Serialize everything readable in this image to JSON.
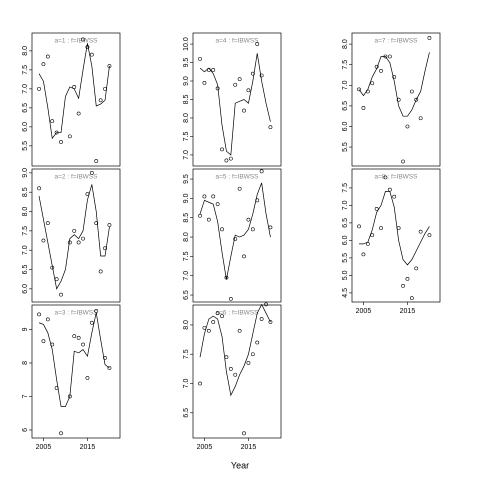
{
  "xlabel": "Year",
  "chart_data": [
    {
      "type": "scatter",
      "title": "a=1 : f=IBWSS",
      "x": [
        2004,
        2005,
        2006,
        2007,
        2008,
        2009,
        2010,
        2011,
        2012,
        2013,
        2014,
        2015,
        2016,
        2017,
        2018,
        2019,
        2020
      ],
      "values": [
        7.0,
        7.65,
        7.85,
        6.15,
        5.85,
        5.6,
        null,
        5.75,
        7.05,
        6.35,
        8.3,
        8.1,
        7.9,
        5.1,
        6.7,
        7.0,
        7.6
      ],
      "line_values": [
        7.4,
        7.2,
        6.5,
        5.7,
        5.85,
        5.85,
        6.8,
        7.05,
        7.0,
        6.75,
        7.5,
        8.2,
        7.6,
        6.55,
        6.6,
        6.7,
        7.6
      ],
      "xlim": [
        2002.4,
        2022.4
      ],
      "ylim": [
        4.97,
        8.47
      ],
      "yticks": [
        5.5,
        {
          "value": 6,
          "label": "6.0"
        },
        6.5,
        {
          "value": 7,
          "label": "7.0"
        },
        7.5,
        {
          "value": 8,
          "label": "8.0"
        }
      ]
    },
    {
      "type": "scatter",
      "title": "a=2 : f=IBWSS",
      "x": [
        2004,
        2005,
        2006,
        2007,
        2008,
        2009,
        2010,
        2011,
        2012,
        2013,
        2014,
        2015,
        2016,
        2017,
        2018,
        2019,
        2020
      ],
      "values": [
        8.6,
        7.25,
        7.7,
        6.55,
        6.25,
        5.85,
        null,
        7.2,
        7.5,
        7.2,
        7.3,
        8.45,
        9.0,
        7.7,
        6.45,
        7.05,
        7.65
      ],
      "line_values": [
        8.4,
        7.8,
        7.2,
        6.6,
        6.0,
        6.2,
        6.5,
        7.3,
        7.4,
        7.3,
        7.5,
        8.3,
        8.7,
        8.0,
        6.85,
        6.85,
        7.6
      ],
      "xlim": [
        2002.4,
        2022.4
      ],
      "ylim": [
        5.66,
        9.1
      ],
      "yticks": [
        {
          "value": 6,
          "label": "6.0"
        },
        6.5,
        {
          "value": 7,
          "label": "7.0"
        },
        7.5,
        {
          "value": 8,
          "label": "8.0"
        },
        8.5,
        {
          "value": 9,
          "label": "9.0"
        }
      ]
    },
    {
      "type": "scatter",
      "title": "a=3 : f=IBWSS",
      "x": [
        2004,
        2005,
        2006,
        2007,
        2008,
        2009,
        2010,
        2011,
        2012,
        2013,
        2014,
        2015,
        2016,
        2017,
        2018,
        2019,
        2020
      ],
      "values": [
        9.45,
        8.65,
        9.3,
        8.55,
        7.25,
        5.9,
        null,
        7.0,
        8.8,
        8.75,
        8.55,
        7.55,
        9.2,
        9.55,
        null,
        8.15,
        7.85
      ],
      "line_values": [
        9.2,
        9.15,
        8.9,
        8.4,
        7.5,
        6.7,
        6.7,
        7.0,
        8.35,
        8.3,
        8.4,
        8.2,
        8.9,
        9.5,
        8.7,
        7.95,
        7.85
      ],
      "xlim": [
        2002.4,
        2022.4
      ],
      "ylim": [
        5.76,
        9.73
      ],
      "yticks": [
        6,
        7,
        8,
        9
      ],
      "xticks": [
        2005,
        2015
      ]
    },
    {
      "type": "scatter",
      "title": "a=4 : f=IBWSS",
      "x": [
        2004,
        2005,
        2006,
        2007,
        2008,
        2009,
        2010,
        2011,
        2012,
        2013,
        2014,
        2015,
        2016,
        2017,
        2018,
        2019,
        2020
      ],
      "values": [
        9.6,
        8.95,
        9.3,
        9.3,
        8.8,
        7.15,
        6.85,
        6.9,
        8.9,
        9.05,
        8.2,
        8.75,
        9.2,
        10.0,
        9.15,
        null,
        7.75
      ],
      "line_values": [
        9.35,
        9.25,
        9.35,
        9.2,
        8.9,
        7.8,
        7.1,
        7.0,
        8.4,
        8.45,
        8.5,
        8.4,
        9.0,
        9.75,
        9.0,
        8.4,
        7.9
      ],
      "xlim": [
        2002.4,
        2022.4
      ],
      "ylim": [
        6.7,
        10.3
      ],
      "yticks": [
        {
          "value": 7,
          "label": "7.0"
        },
        7.5,
        {
          "value": 8,
          "label": "8.0"
        },
        8.5,
        {
          "value": 9,
          "label": "9.0"
        },
        9.5,
        {
          "value": 10,
          "label": "10.0"
        }
      ]
    },
    {
      "type": "scatter",
      "title": "a=5 : f=IBWSS",
      "x": [
        2004,
        2005,
        2006,
        2007,
        2008,
        2009,
        2010,
        2011,
        2012,
        2013,
        2014,
        2015,
        2016,
        2017,
        2018,
        2019,
        2020
      ],
      "values": [
        8.55,
        9.05,
        8.45,
        9.05,
        8.85,
        8.2,
        6.95,
        6.4,
        7.95,
        9.25,
        7.5,
        8.45,
        8.2,
        8.95,
        9.7,
        null,
        8.25
      ],
      "line_values": [
        8.6,
        8.95,
        8.9,
        8.85,
        8.4,
        7.6,
        6.9,
        7.5,
        8.05,
        8.0,
        8.05,
        8.2,
        8.6,
        9.1,
        9.4,
        8.6,
        8.0
      ],
      "xlim": [
        2002.4,
        2022.4
      ],
      "ylim": [
        6.32,
        9.76
      ],
      "yticks": [
        6.5,
        {
          "value": 7,
          "label": "7.0"
        },
        7.5,
        {
          "value": 8,
          "label": "8.0"
        },
        8.5,
        {
          "value": 9,
          "label": "9.0"
        },
        9.5
      ]
    },
    {
      "type": "scatter",
      "title": "a=6 : f=IBWSS",
      "x": [
        2004,
        2005,
        2006,
        2007,
        2008,
        2009,
        2010,
        2011,
        2012,
        2013,
        2014,
        2015,
        2016,
        2017,
        2018,
        2019,
        2020
      ],
      "values": [
        7.0,
        7.95,
        7.9,
        8.05,
        8.2,
        8.15,
        7.45,
        7.25,
        7.15,
        7.9,
        6.15,
        7.35,
        7.5,
        7.7,
        8.1,
        8.35,
        8.05
      ],
      "line_values": [
        7.45,
        7.85,
        8.1,
        8.15,
        8.1,
        7.8,
        7.2,
        6.8,
        6.95,
        7.15,
        7.3,
        7.5,
        7.85,
        8.2,
        8.35,
        8.2,
        8.05
      ],
      "xlim": [
        2002.4,
        2022.4
      ],
      "ylim": [
        6.07,
        8.34
      ],
      "yticks": [
        6.5,
        {
          "value": 7,
          "label": "7.0"
        },
        7.5,
        {
          "value": 8,
          "label": "8.0"
        }
      ],
      "xticks": [
        2005,
        2015
      ]
    },
    {
      "type": "scatter",
      "title": "a=7 : f=IBWSS",
      "x": [
        2004,
        2005,
        2006,
        2007,
        2008,
        2009,
        2010,
        2011,
        2012,
        2013,
        2014,
        2015,
        2016,
        2017,
        2018,
        2019,
        2020
      ],
      "values": [
        6.9,
        6.45,
        6.85,
        7.05,
        7.45,
        7.35,
        7.7,
        7.7,
        7.2,
        6.65,
        5.15,
        6.0,
        6.85,
        6.65,
        6.2,
        null,
        8.15
      ],
      "line_values": [
        6.9,
        6.75,
        6.9,
        7.2,
        7.4,
        7.7,
        7.7,
        7.55,
        7.1,
        6.5,
        6.25,
        6.25,
        6.4,
        6.65,
        6.85,
        7.35,
        7.8
      ],
      "xlim": [
        2002.4,
        2022.4
      ],
      "ylim": [
        5.04,
        8.27
      ],
      "yticks": [
        5.5,
        {
          "value": 6,
          "label": "6.0"
        },
        6.5,
        {
          "value": 7,
          "label": "7.0"
        },
        7.5,
        {
          "value": 8,
          "label": "8.0"
        }
      ]
    },
    {
      "type": "scatter",
      "title": "a=8 : f=IBWSS",
      "x": [
        2004,
        2005,
        2006,
        2007,
        2008,
        2009,
        2010,
        2011,
        2012,
        2013,
        2014,
        2015,
        2016,
        2017,
        2018,
        2019,
        2020
      ],
      "values": [
        6.4,
        5.6,
        5.9,
        6.15,
        6.9,
        6.35,
        7.8,
        7.45,
        7.25,
        6.35,
        4.7,
        4.9,
        4.35,
        5.2,
        6.25,
        null,
        6.15
      ],
      "line_values": [
        5.9,
        5.9,
        5.95,
        6.3,
        6.8,
        7.0,
        7.4,
        7.4,
        6.95,
        6.0,
        5.45,
        5.3,
        5.45,
        5.7,
        5.95,
        6.2,
        6.4
      ],
      "xlim": [
        2002.4,
        2022.4
      ],
      "ylim": [
        4.24,
        8.04
      ],
      "yticks": [
        4.5,
        {
          "value": 5,
          "label": "5.0"
        },
        5.5,
        {
          "value": 6,
          "label": "6.0"
        },
        6.5,
        {
          "value": 7,
          "label": "7.0"
        },
        7.5
      ],
      "xticks": [
        2005,
        2015
      ]
    }
  ]
}
